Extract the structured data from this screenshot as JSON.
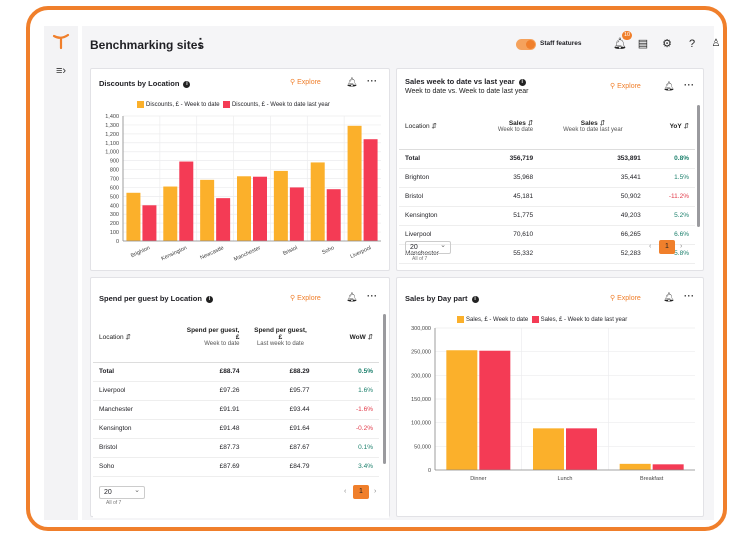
{
  "header": {
    "title": "Benchmarking sites",
    "staff_label": "Staff features",
    "notif_count": "10"
  },
  "common": {
    "explore": "Explore"
  },
  "discounts": {
    "title": "Discounts by Location",
    "chart_data": {
      "type": "bar",
      "categories": [
        "Brighton",
        "Kensington",
        "Newcastle",
        "Manchester",
        "Bristol",
        "Soho",
        "Liverpool"
      ],
      "series": [
        {
          "name": "Discounts, £ - Week to date",
          "color": "#fbb02b",
          "values": [
            540,
            610,
            685,
            725,
            785,
            880,
            1290
          ]
        },
        {
          "name": "Discounts, £ - Week to date last year",
          "color": "#f43b55",
          "values": [
            400,
            890,
            480,
            720,
            600,
            580,
            1140
          ]
        }
      ],
      "yticks": [
        "0",
        "100",
        "200",
        "300",
        "400",
        "500",
        "600",
        "700",
        "800",
        "900",
        "1,000",
        "1,100",
        "1,200",
        "1,300",
        "1,400"
      ],
      "ylim": [
        0,
        1400
      ]
    }
  },
  "sales_wtd": {
    "title": "Sales week to date vs last year",
    "subtitle": "Week to date vs. Week to date last year",
    "headers": {
      "loc": "Location",
      "s1": "Sales",
      "s1sub": "Week to date",
      "s2": "Sales",
      "s2sub": "Week to date last year",
      "yoy": "YoY"
    },
    "rows": [
      {
        "loc": "Total",
        "a": "356,719",
        "b": "353,891",
        "c": "0.8%",
        "cls": "pos"
      },
      {
        "loc": "Brighton",
        "a": "35,968",
        "b": "35,441",
        "c": "1.5%",
        "cls": "pos"
      },
      {
        "loc": "Bristol",
        "a": "45,181",
        "b": "50,902",
        "c": "-11.2%",
        "cls": "neg"
      },
      {
        "loc": "Kensington",
        "a": "51,775",
        "b": "49,203",
        "c": "5.2%",
        "cls": "pos"
      },
      {
        "loc": "Liverpool",
        "a": "70,610",
        "b": "66,265",
        "c": "6.6%",
        "cls": "pos"
      },
      {
        "loc": "Manchester",
        "a": "55,332",
        "b": "52,283",
        "c": "5.8%",
        "cls": "pos"
      }
    ],
    "page_size": "20",
    "meta": "All of 7",
    "page": "1"
  },
  "spend": {
    "title": "Spend per guest by Location",
    "headers": {
      "loc": "Location",
      "s1": "Spend per guest, £",
      "s1sub": "Week to date",
      "s2": "Spend per guest, £",
      "s2sub": "Last week to date",
      "wow": "WoW"
    },
    "rows": [
      {
        "loc": "Total",
        "a": "£88.74",
        "b": "£88.29",
        "c": "0.5%",
        "cls": "pos"
      },
      {
        "loc": "Liverpool",
        "a": "£97.26",
        "b": "£95.77",
        "c": "1.6%",
        "cls": "pos"
      },
      {
        "loc": "Manchester",
        "a": "£91.91",
        "b": "£93.44",
        "c": "-1.6%",
        "cls": "neg"
      },
      {
        "loc": "Kensington",
        "a": "£91.48",
        "b": "£91.64",
        "c": "-0.2%",
        "cls": "neg"
      },
      {
        "loc": "Bristol",
        "a": "£87.73",
        "b": "£87.67",
        "c": "0.1%",
        "cls": "pos"
      },
      {
        "loc": "Soho",
        "a": "£87.69",
        "b": "£84.79",
        "c": "3.4%",
        "cls": "pos"
      }
    ],
    "page_size": "20",
    "meta": "All of 7",
    "page": "1"
  },
  "daypart": {
    "title": "Sales by Day part",
    "chart_data": {
      "type": "bar",
      "categories": [
        "Dinner",
        "Lunch",
        "Breakfast"
      ],
      "series": [
        {
          "name": "Sales, £ - Week to date",
          "color": "#fbb02b",
          "values": [
            253000,
            88000,
            13000
          ]
        },
        {
          "name": "Sales, £ - Week to date last year",
          "color": "#f43b55",
          "values": [
            252000,
            88000,
            12000
          ]
        }
      ],
      "yticks": [
        "0",
        "50,000",
        "100,000",
        "150,000",
        "200,000",
        "250,000",
        "300,000"
      ],
      "ylim": [
        0,
        300000
      ]
    }
  }
}
